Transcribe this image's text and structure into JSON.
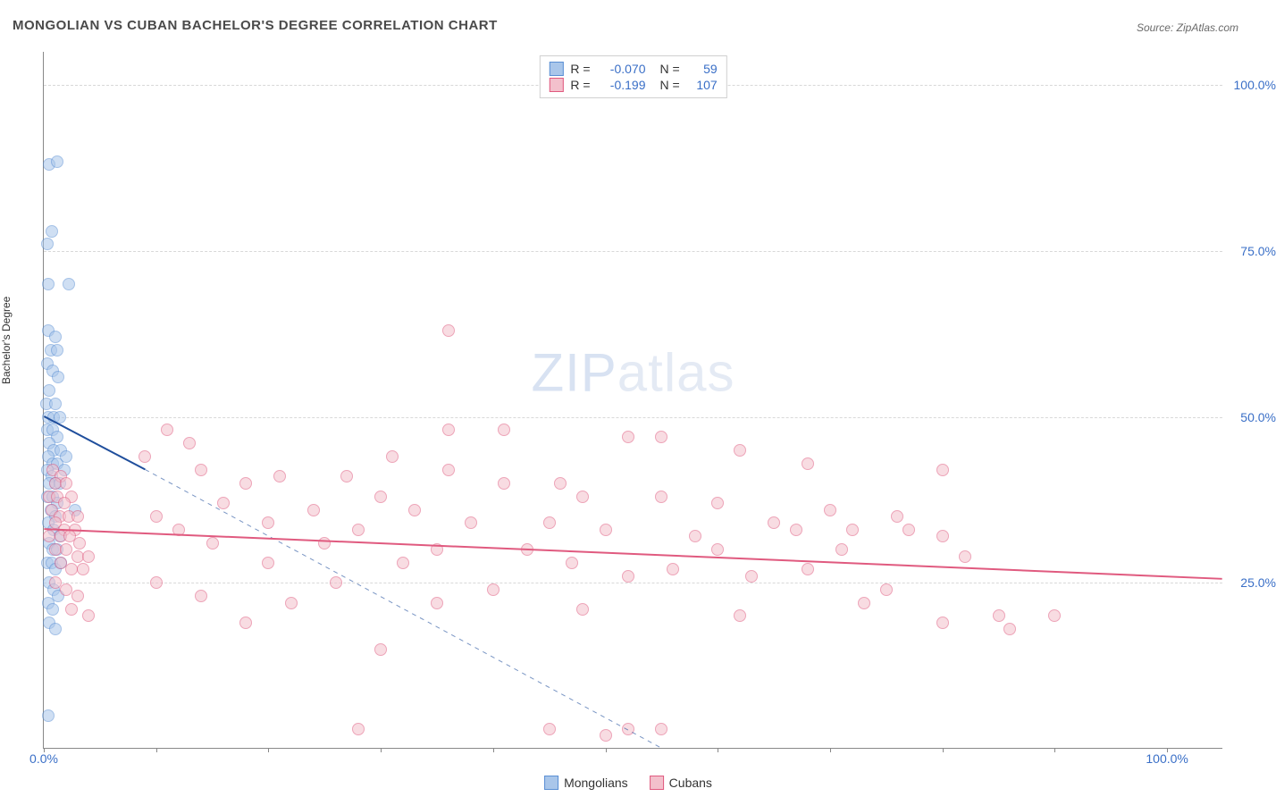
{
  "title": "MONGOLIAN VS CUBAN BACHELOR'S DEGREE CORRELATION CHART",
  "source": "Source: ZipAtlas.com",
  "watermark_a": "ZIP",
  "watermark_b": "atlas",
  "chart": {
    "type": "scatter",
    "ylabel": "Bachelor's Degree",
    "xlim": [
      0,
      105
    ],
    "ylim": [
      0,
      105
    ],
    "xtick_positions": [
      0,
      10,
      20,
      30,
      40,
      50,
      60,
      70,
      80,
      90,
      100
    ],
    "xtick_labels": {
      "0": "0.0%",
      "100": "100.0%"
    },
    "ytick_positions": [
      25,
      50,
      75,
      100
    ],
    "ytick_labels": {
      "25": "25.0%",
      "50": "50.0%",
      "75": "75.0%",
      "100": "100.0%"
    },
    "grid_color": "#d8d8d8",
    "background_color": "#ffffff",
    "axis_color": "#888888",
    "label_color": "#3a6fc7",
    "marker_size": 14,
    "marker_opacity": 0.55,
    "series": [
      {
        "name": "Mongolians",
        "color_fill": "#a9c6ea",
        "color_stroke": "#5a8fd4",
        "R": "-0.070",
        "N": "59",
        "trend": {
          "x1": 0,
          "y1": 50,
          "x2": 9,
          "y2": 42,
          "dashed_to_x": 55,
          "dashed_to_y": 0,
          "color": "#1f4e9c",
          "width": 2
        },
        "points": [
          [
            0.5,
            88
          ],
          [
            1.2,
            88.5
          ],
          [
            0.7,
            78
          ],
          [
            0.3,
            76
          ],
          [
            0.4,
            70
          ],
          [
            2.2,
            70
          ],
          [
            0.4,
            63
          ],
          [
            1.0,
            62
          ],
          [
            0.6,
            60
          ],
          [
            1.2,
            60
          ],
          [
            0.3,
            58
          ],
          [
            0.8,
            57
          ],
          [
            1.3,
            56
          ],
          [
            0.5,
            54
          ],
          [
            0.2,
            52
          ],
          [
            1.0,
            52
          ],
          [
            0.4,
            50
          ],
          [
            0.9,
            50
          ],
          [
            1.4,
            50
          ],
          [
            0.3,
            48
          ],
          [
            0.8,
            48
          ],
          [
            1.2,
            47
          ],
          [
            0.5,
            46
          ],
          [
            0.9,
            45
          ],
          [
            1.5,
            45
          ],
          [
            0.4,
            44
          ],
          [
            0.8,
            43
          ],
          [
            1.2,
            43
          ],
          [
            0.3,
            42
          ],
          [
            0.7,
            41
          ],
          [
            1.8,
            42
          ],
          [
            1.0,
            40
          ],
          [
            0.5,
            40
          ],
          [
            1.4,
            40
          ],
          [
            0.3,
            38
          ],
          [
            0.8,
            38
          ],
          [
            1.2,
            37
          ],
          [
            0.6,
            36
          ],
          [
            1.0,
            35
          ],
          [
            2.8,
            36
          ],
          [
            0.4,
            34
          ],
          [
            0.9,
            33
          ],
          [
            1.4,
            32
          ],
          [
            0.5,
            31
          ],
          [
            0.8,
            30
          ],
          [
            1.2,
            30
          ],
          [
            0.3,
            28
          ],
          [
            0.7,
            28
          ],
          [
            1.0,
            27
          ],
          [
            1.5,
            28
          ],
          [
            0.5,
            25
          ],
          [
            0.9,
            24
          ],
          [
            1.3,
            23
          ],
          [
            0.4,
            22
          ],
          [
            0.8,
            21
          ],
          [
            0.5,
            19
          ],
          [
            1.0,
            18
          ],
          [
            0.4,
            5
          ],
          [
            2.0,
            44
          ]
        ]
      },
      {
        "name": "Cubans",
        "color_fill": "#f3c0cc",
        "color_stroke": "#e05a7f",
        "R": "-0.199",
        "N": "107",
        "trend": {
          "x1": 0,
          "y1": 33,
          "x2": 105,
          "y2": 25.5,
          "color": "#e05a7f",
          "width": 2
        },
        "points": [
          [
            0.8,
            42
          ],
          [
            1.5,
            41
          ],
          [
            1.0,
            40
          ],
          [
            2.0,
            40
          ],
          [
            0.5,
            38
          ],
          [
            1.2,
            38
          ],
          [
            2.5,
            38
          ],
          [
            1.8,
            37
          ],
          [
            0.7,
            36
          ],
          [
            1.4,
            35
          ],
          [
            2.2,
            35
          ],
          [
            3.0,
            35
          ],
          [
            1.0,
            34
          ],
          [
            1.8,
            33
          ],
          [
            2.8,
            33
          ],
          [
            0.5,
            32
          ],
          [
            1.5,
            32
          ],
          [
            2.3,
            32
          ],
          [
            3.2,
            31
          ],
          [
            1.0,
            30
          ],
          [
            2.0,
            30
          ],
          [
            3.0,
            29
          ],
          [
            4.0,
            29
          ],
          [
            1.5,
            28
          ],
          [
            2.5,
            27
          ],
          [
            3.5,
            27
          ],
          [
            1.0,
            25
          ],
          [
            2.0,
            24
          ],
          [
            3.0,
            23
          ],
          [
            2.5,
            21
          ],
          [
            4.0,
            20
          ],
          [
            36,
            63
          ],
          [
            11,
            48
          ],
          [
            36,
            48
          ],
          [
            41,
            48
          ],
          [
            52,
            47
          ],
          [
            13,
            46
          ],
          [
            55,
            47
          ],
          [
            62,
            45
          ],
          [
            9,
            44
          ],
          [
            31,
            44
          ],
          [
            36,
            42
          ],
          [
            68,
            43
          ],
          [
            14,
            42
          ],
          [
            21,
            41
          ],
          [
            27,
            41
          ],
          [
            80,
            42
          ],
          [
            18,
            40
          ],
          [
            41,
            40
          ],
          [
            46,
            40
          ],
          [
            30,
            38
          ],
          [
            48,
            38
          ],
          [
            55,
            38
          ],
          [
            60,
            37
          ],
          [
            16,
            37
          ],
          [
            24,
            36
          ],
          [
            33,
            36
          ],
          [
            70,
            36
          ],
          [
            10,
            35
          ],
          [
            20,
            34
          ],
          [
            38,
            34
          ],
          [
            45,
            34
          ],
          [
            65,
            34
          ],
          [
            76,
            35
          ],
          [
            12,
            33
          ],
          [
            28,
            33
          ],
          [
            50,
            33
          ],
          [
            58,
            32
          ],
          [
            67,
            33
          ],
          [
            72,
            33
          ],
          [
            77,
            33
          ],
          [
            80,
            32
          ],
          [
            15,
            31
          ],
          [
            25,
            31
          ],
          [
            35,
            30
          ],
          [
            43,
            30
          ],
          [
            60,
            30
          ],
          [
            71,
            30
          ],
          [
            82,
            29
          ],
          [
            20,
            28
          ],
          [
            32,
            28
          ],
          [
            47,
            28
          ],
          [
            56,
            27
          ],
          [
            68,
            27
          ],
          [
            52,
            26
          ],
          [
            63,
            26
          ],
          [
            10,
            25
          ],
          [
            26,
            25
          ],
          [
            40,
            24
          ],
          [
            75,
            24
          ],
          [
            14,
            23
          ],
          [
            22,
            22
          ],
          [
            35,
            22
          ],
          [
            48,
            21
          ],
          [
            85,
            20
          ],
          [
            62,
            20
          ],
          [
            80,
            19
          ],
          [
            86,
            18
          ],
          [
            18,
            19
          ],
          [
            30,
            15
          ],
          [
            73,
            22
          ],
          [
            90,
            20
          ],
          [
            28,
            3
          ],
          [
            50,
            2
          ],
          [
            52,
            3
          ],
          [
            55,
            3
          ],
          [
            45,
            3
          ]
        ]
      }
    ]
  },
  "legend_top": {
    "r_label": "R =",
    "n_label": "N ="
  },
  "legend_bottom": [
    {
      "label": "Mongolians",
      "fill": "#a9c6ea",
      "stroke": "#5a8fd4"
    },
    {
      "label": "Cubans",
      "fill": "#f3c0cc",
      "stroke": "#e05a7f"
    }
  ]
}
